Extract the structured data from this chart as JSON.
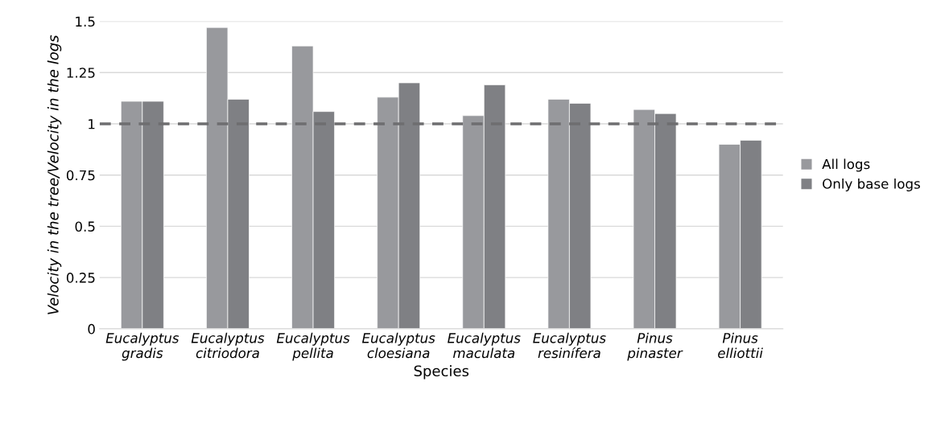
{
  "chart_data": {
    "type": "bar",
    "xlabel": "Species",
    "ylabel": "Velocity in the tree/Velocity in the logs",
    "categories": [
      "Eucalyptus\ngradis",
      "Eucalyptus\ncitriodora",
      "Eucalyptus\npellita",
      "Eucalyptus\ncloesiana",
      "Eucalyptus\nmaculata",
      "Eucalyptus\nresinífera",
      "Pinus\npinaster",
      "Pinus\nelliottii"
    ],
    "series": [
      {
        "name": "All logs",
        "color": "#98999d",
        "values": [
          1.11,
          1.47,
          1.38,
          1.13,
          1.04,
          1.12,
          1.07,
          0.9
        ]
      },
      {
        "name": "Only base logs",
        "color": "#7f8084",
        "values": [
          1.11,
          1.12,
          1.06,
          1.2,
          1.19,
          1.1,
          1.05,
          0.92
        ]
      }
    ],
    "ylim": [
      0,
      1.5
    ],
    "yticks": [
      0,
      {
        "value": 0.25,
        "label": "0.25"
      },
      {
        "value": 0.5,
        "label": "0.5"
      },
      {
        "value": 0.75,
        "label": "0.75"
      },
      1,
      {
        "value": 1.25,
        "label": "1.25"
      },
      {
        "value": 1.5,
        "label": "1.5"
      }
    ],
    "ref_lines": [
      {
        "axis": "y",
        "value": 1,
        "label": null,
        "color": "#6e6e70",
        "line_style": "dashed"
      }
    ],
    "grid": "y",
    "legend": "right"
  }
}
